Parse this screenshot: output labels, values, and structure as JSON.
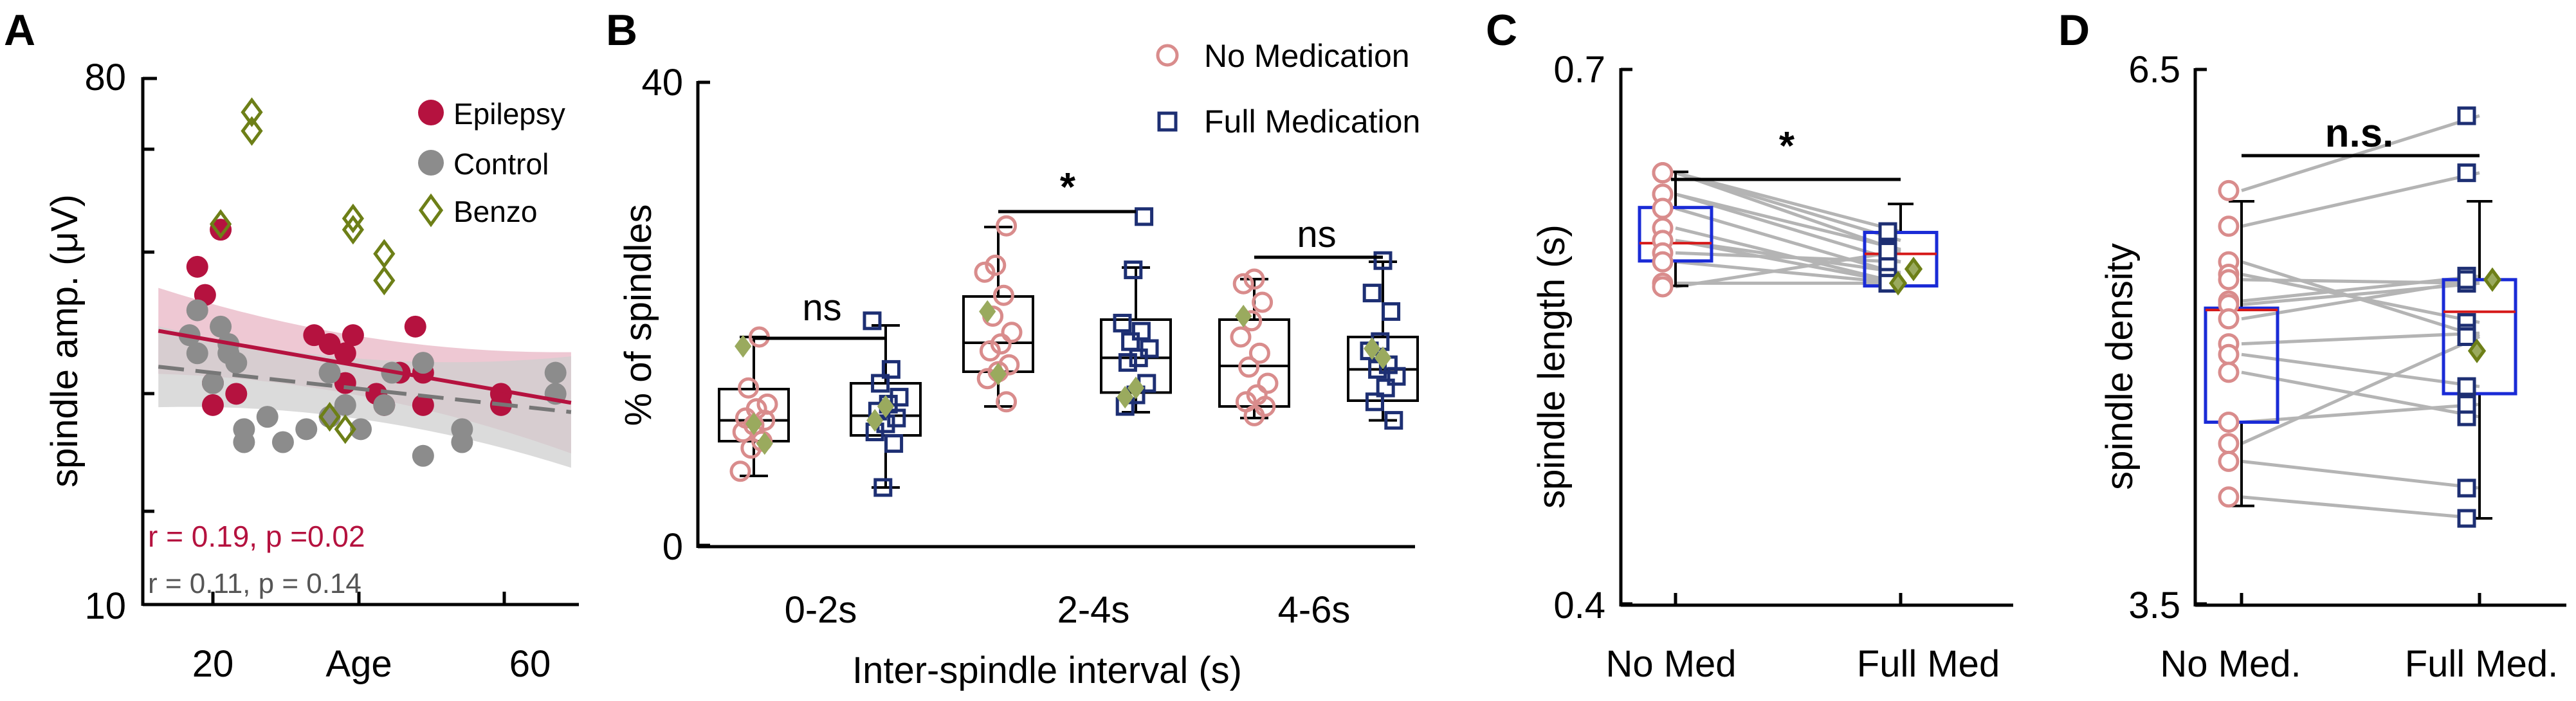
{
  "colors": {
    "epilepsy": "#b5123f",
    "control": "#8c8c8c",
    "benzo": "#6d7f17",
    "benzo_fill": "#9aaa5e",
    "no_med": "#d98c8c",
    "full_med": "#1d2f73",
    "box_blue": "#1a2bd6",
    "band_epi": "#e8b6c4",
    "band_ctl": "#cfcfcf",
    "line_gray": "#b4b4b4",
    "axis": "#000000"
  },
  "chart_data": [
    {
      "panel": "A",
      "type": "scatter",
      "ylabel": "spindle amp.  (μV)",
      "xlabel": "Age",
      "xticks": [
        "20",
        "60"
      ],
      "xlim": [
        14,
        70
      ],
      "ylim_log": [
        10,
        80
      ],
      "ytick_labels": [
        "80",
        "10"
      ],
      "legend": [
        "Epilepsy",
        "Control",
        "Benzo"
      ],
      "annotations": [
        "r = 0.19,  p =0.02",
        "r = 0.11,  p = 0.14"
      ],
      "series": [
        {
          "name": "Epilepsy",
          "points": [
            [
              21,
              38
            ],
            [
              22,
              34
            ],
            [
              23,
              22
            ],
            [
              23,
              24
            ],
            [
              24,
              44
            ],
            [
              26,
              23
            ],
            [
              36,
              29
            ],
            [
              38,
              28
            ],
            [
              40,
              27
            ],
            [
              40,
              24
            ],
            [
              41,
              29
            ],
            [
              44,
              23
            ],
            [
              45,
              22
            ],
            [
              47,
              25
            ],
            [
              49,
              30
            ],
            [
              50,
              25
            ],
            [
              50,
              22
            ],
            [
              60,
              22
            ],
            [
              60,
              23
            ]
          ]
        },
        {
          "name": "Control",
          "points": [
            [
              20,
              29
            ],
            [
              21,
              27
            ],
            [
              21,
              32
            ],
            [
              23,
              24
            ],
            [
              24,
              30
            ],
            [
              25,
              27
            ],
            [
              25,
              28
            ],
            [
              26,
              26
            ],
            [
              27,
              20
            ],
            [
              27,
              19
            ],
            [
              30,
              21
            ],
            [
              32,
              19
            ],
            [
              35,
              20
            ],
            [
              38,
              25
            ],
            [
              38,
              21
            ],
            [
              40,
              22
            ],
            [
              42,
              20
            ],
            [
              45,
              22
            ],
            [
              46,
              25
            ],
            [
              50,
              18
            ],
            [
              50,
              26
            ],
            [
              55,
              20
            ],
            [
              55,
              19
            ],
            [
              67,
              25
            ],
            [
              67,
              23
            ]
          ]
        },
        {
          "name": "Benzo",
          "points": [
            [
              24,
              45
            ],
            [
              28,
              70
            ],
            [
              28,
              65
            ],
            [
              38,
              21
            ],
            [
              40,
              20
            ],
            [
              41,
              46
            ],
            [
              41,
              44
            ],
            [
              45,
              40
            ],
            [
              45,
              36
            ]
          ]
        }
      ],
      "fits": [
        {
          "name": "Epilepsy",
          "y_start": 29.5,
          "y_end": 22.2
        },
        {
          "name": "Control",
          "y_start": 25.6,
          "y_end": 21.4
        }
      ]
    },
    {
      "panel": "B",
      "type": "box",
      "ylabel": "% of spindles",
      "xlabel": "Inter-spindle interval (s)",
      "categories": [
        "0-2s",
        "2-4s",
        "4-6s"
      ],
      "ylim": [
        0,
        40
      ],
      "ytick_labels": [
        "40",
        "0"
      ],
      "legend": [
        "No Medication",
        "Full Medication"
      ],
      "significance": [
        "ns",
        "*",
        "ns"
      ],
      "groups": [
        {
          "category": "0-2s",
          "series": "No Medication",
          "min": 6.0,
          "q1": 9.0,
          "median": 10.8,
          "q3": 13.5,
          "max": 18.0,
          "points": [
            6.4,
            8.4,
            9.0,
            9.8,
            10.4,
            10.8,
            11.0,
            11.8,
            12.2,
            13.6,
            18.0
          ],
          "benzo": [
            17.2,
            10.5,
            8.8
          ]
        },
        {
          "category": "0-2s",
          "series": "Full Medication",
          "min": 5.0,
          "q1": 9.5,
          "median": 11.2,
          "q3": 14.0,
          "max": 19.0,
          "points": [
            5.0,
            8.8,
            9.8,
            10.5,
            11.0,
            11.6,
            12.2,
            12.8,
            14.0,
            15.2,
            19.4
          ],
          "benzo": [
            10.8,
            12.0
          ]
        },
        {
          "category": "2-4s",
          "series": "No Medication",
          "min": 12.0,
          "q1": 15.0,
          "median": 17.5,
          "q3": 21.5,
          "max": 27.5,
          "points": [
            12.4,
            14.4,
            15.0,
            15.6,
            16.8,
            17.4,
            18.4,
            19.8,
            21.6,
            23.6,
            24.2,
            27.6
          ],
          "benzo": [
            20.2,
            14.8
          ]
        },
        {
          "category": "2-4s",
          "series": "Full Medication",
          "min": 11.5,
          "q1": 13.2,
          "median": 16.2,
          "q3": 19.5,
          "max": 24.0,
          "points": [
            12.0,
            13.0,
            14.0,
            15.8,
            16.2,
            17.0,
            17.6,
            18.5,
            19.2,
            23.8,
            28.4
          ],
          "benzo": [
            12.8,
            13.6
          ]
        },
        {
          "category": "4-6s",
          "series": "No Medication",
          "min": 11.0,
          "q1": 12.0,
          "median": 15.5,
          "q3": 19.5,
          "max": 23.0,
          "points": [
            11.2,
            12.0,
            12.4,
            13.0,
            14.0,
            15.4,
            16.6,
            18.0,
            19.4,
            21.0,
            22.6,
            23.0
          ],
          "benzo": [
            19.8
          ]
        },
        {
          "category": "4-6s",
          "series": "Full Medication",
          "min": 10.8,
          "q1": 12.5,
          "median": 15.2,
          "q3": 18.0,
          "max": 24.5,
          "points": [
            10.8,
            12.4,
            13.6,
            14.6,
            15.2,
            15.6,
            16.8,
            17.6,
            20.2,
            21.8,
            24.6
          ],
          "benzo": [
            17.0,
            16.2
          ]
        }
      ]
    },
    {
      "panel": "C",
      "type": "paired",
      "ylabel": "spindle length (s)",
      "categories": [
        "No Med",
        "Full Med"
      ],
      "ylim": [
        0.4,
        0.7
      ],
      "ytick_labels": [
        "0.7",
        "0.4"
      ],
      "significance": "*",
      "box_left": {
        "min": 0.5785,
        "q1": 0.5925,
        "median": 0.6025,
        "q3": 0.6225,
        "max": 0.6425
      },
      "box_right": {
        "min": 0.5785,
        "q1": 0.5785,
        "median": 0.5965,
        "q3": 0.6085,
        "max": 0.6245
      },
      "pairs": [
        [
          0.642,
          0.598
        ],
        [
          0.642,
          0.604
        ],
        [
          0.642,
          0.609
        ],
        [
          0.63,
          0.592
        ],
        [
          0.63,
          0.599
        ],
        [
          0.622,
          0.585
        ],
        [
          0.611,
          0.58
        ],
        [
          0.604,
          0.58
        ],
        [
          0.604,
          0.586
        ],
        [
          0.597,
          0.592
        ],
        [
          0.592,
          0.58
        ],
        [
          0.58,
          0.58
        ],
        [
          0.578,
          0.598
        ]
      ],
      "benzo_right": [
        0.588,
        0.58
      ]
    },
    {
      "panel": "D",
      "type": "paired",
      "ylabel": "spindle density",
      "categories": [
        "No Med.",
        "Full Med."
      ],
      "ylim": [
        3.5,
        6.5
      ],
      "ytick_labels": [
        "6.5",
        "3.5"
      ],
      "significance": "n.s.",
      "box_left": {
        "min": 4.05,
        "q1": 4.52,
        "median": 5.15,
        "q3": 5.16,
        "max": 5.76
      },
      "box_right": {
        "min": 3.98,
        "q1": 4.68,
        "median": 5.14,
        "q3": 5.32,
        "max": 5.76
      },
      "pairs": [
        [
          5.82,
          6.24
        ],
        [
          5.62,
          5.92
        ],
        [
          5.42,
          5.0
        ],
        [
          5.35,
          5.08
        ],
        [
          5.32,
          5.3
        ],
        [
          5.2,
          5.34
        ],
        [
          5.18,
          5.3
        ],
        [
          5.1,
          5.32
        ],
        [
          4.96,
          5.02
        ],
        [
          4.9,
          4.72
        ],
        [
          4.8,
          4.55
        ],
        [
          4.52,
          4.62
        ],
        [
          4.4,
          5.0
        ],
        [
          4.3,
          4.15
        ],
        [
          4.1,
          3.98
        ]
      ],
      "benzo_right": [
        5.32,
        4.92
      ]
    }
  ]
}
